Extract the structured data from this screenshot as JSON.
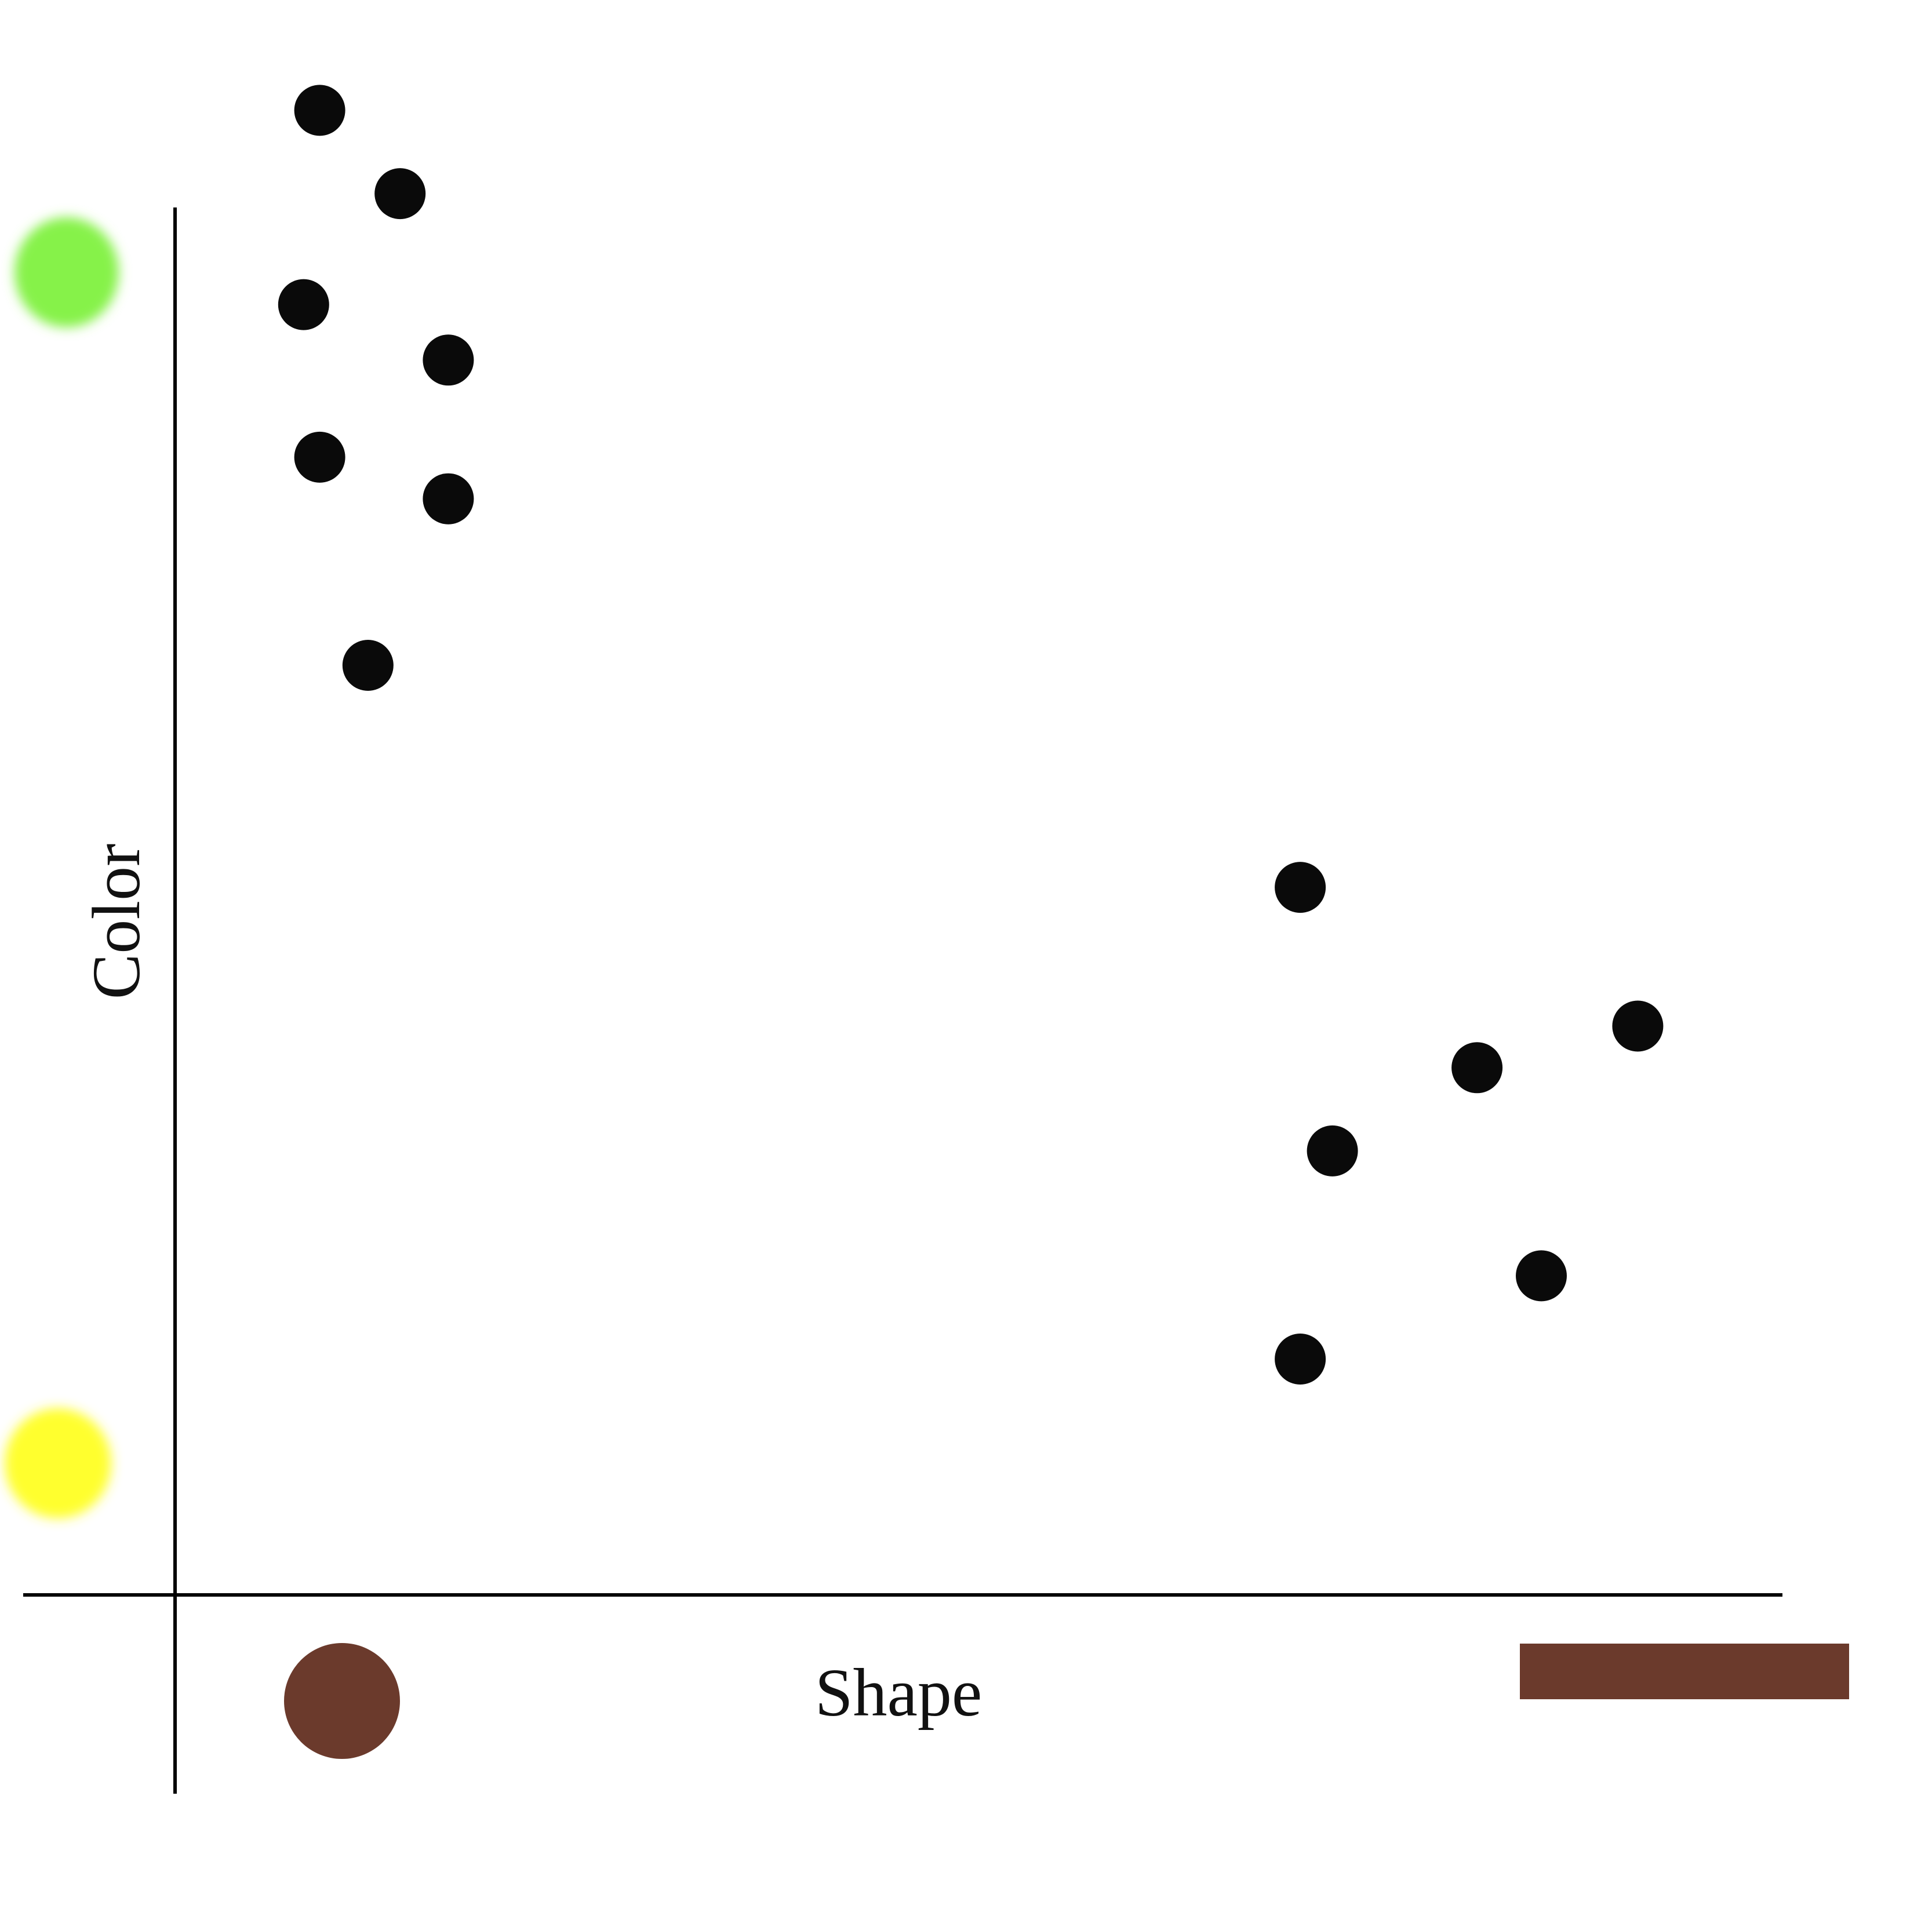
{
  "chart_data": {
    "type": "scatter",
    "title": "",
    "xlabel": "Shape",
    "ylabel": "Color",
    "grid": false,
    "legend": "none",
    "series": [
      {
        "points": [
          {
            "x": 0.09,
            "y": 1.07
          },
          {
            "x": 0.14,
            "y": 1.01
          },
          {
            "x": 0.08,
            "y": 0.93
          },
          {
            "x": 0.17,
            "y": 0.89
          },
          {
            "x": 0.09,
            "y": 0.82
          },
          {
            "x": 0.17,
            "y": 0.79
          },
          {
            "x": 0.12,
            "y": 0.67
          },
          {
            "x": 0.7,
            "y": 0.51
          },
          {
            "x": 0.81,
            "y": 0.38
          },
          {
            "x": 0.91,
            "y": 0.41
          },
          {
            "x": 0.72,
            "y": 0.32
          },
          {
            "x": 0.85,
            "y": 0.23
          },
          {
            "x": 0.7,
            "y": 0.17
          }
        ]
      }
    ],
    "x_extremes": {
      "low": "round",
      "high": "long"
    },
    "y_extremes": {
      "low": "yellow",
      "high": "green"
    },
    "colors": {
      "points": "#0a0a0a",
      "green": "#86f24a",
      "yellow": "#ffff2e",
      "brown": "#6b3a2c",
      "axes": "#000000"
    }
  }
}
